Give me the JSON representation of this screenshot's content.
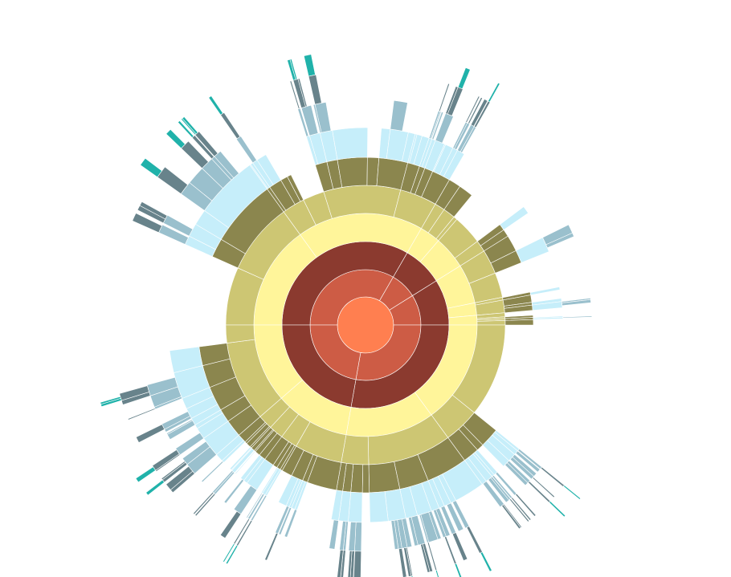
{
  "chart_data": {
    "type": "sunburst",
    "title": "",
    "max_depth": 9,
    "ring_palette": [
      "#FF7F50",
      "#CD5C45",
      "#8B3A2F",
      "#FFF59A",
      "#CDC673",
      "#8B864E",
      "#C6EEFA",
      "#9AC0CD",
      "#68838B",
      "#20B2AA",
      "#B6F03D",
      "#6B8E23",
      "#FFA500"
    ],
    "sectors": [
      {
        "t0": -90.0,
        "t1": 30.0,
        "depth": 9,
        "seed": 11,
        "leafProb": 0.07
      },
      {
        "t0": 30.0,
        "t1": 58.0,
        "depth": 7,
        "seed": 23,
        "leafProb": 0.12
      },
      {
        "t0": 58.0,
        "t1": 90.0,
        "depth": 7,
        "seed": 37,
        "leafProb": 0.1
      },
      {
        "t0": 90.0,
        "t1": 190.0,
        "depth": 9,
        "seed": 41,
        "leafProb": 0.06
      },
      {
        "t0": 190.0,
        "t1": 270.0,
        "depth": 9,
        "seed": 53,
        "leafProb": 0.06
      }
    ]
  }
}
